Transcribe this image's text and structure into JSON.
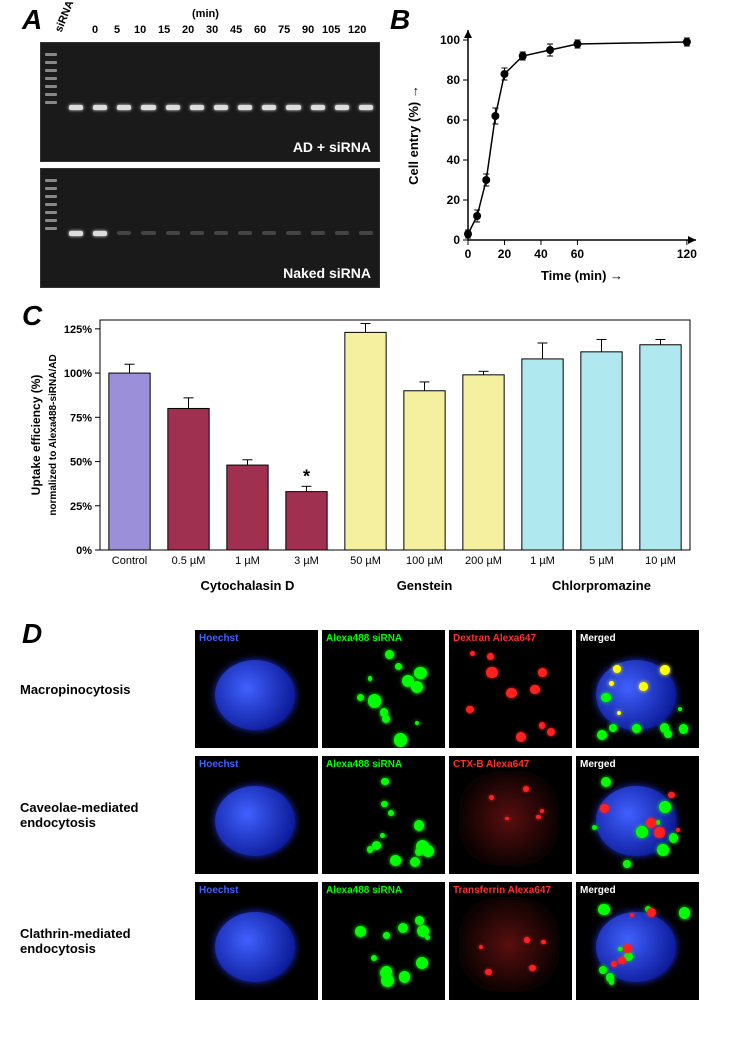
{
  "panelA": {
    "label": "A",
    "time_unit_label": "(min)",
    "column_headers": [
      "siRNA",
      "0",
      "5",
      "10",
      "15",
      "20",
      "30",
      "45",
      "60",
      "75",
      "90",
      "105",
      "120"
    ],
    "header_fontsize": 11,
    "gel1_label": "AD + siRNA",
    "gel2_label": "Naked siRNA",
    "gel_bg": "#1a1a1a",
    "band_color": "#dddddd",
    "overlay_text_color": "#ffffff",
    "overlay_fontsize": 14
  },
  "panelB": {
    "label": "B",
    "type": "line-scatter",
    "x_label": "Time (min)",
    "y_label": "Cell entry (%)",
    "x_arrow": true,
    "y_arrow": true,
    "x_lim": [
      0,
      125
    ],
    "y_lim": [
      0,
      105
    ],
    "x_ticks": [
      0,
      20,
      40,
      60,
      120
    ],
    "y_ticks": [
      0,
      20,
      40,
      60,
      80,
      100
    ],
    "points": [
      {
        "x": 0,
        "y": 3,
        "err": 2
      },
      {
        "x": 5,
        "y": 12,
        "err": 3
      },
      {
        "x": 10,
        "y": 30,
        "err": 3
      },
      {
        "x": 15,
        "y": 62,
        "err": 4
      },
      {
        "x": 20,
        "y": 83,
        "err": 3
      },
      {
        "x": 30,
        "y": 92,
        "err": 2
      },
      {
        "x": 45,
        "y": 95,
        "err": 3
      },
      {
        "x": 60,
        "y": 98,
        "err": 2
      },
      {
        "x": 120,
        "y": 99,
        "err": 2
      }
    ],
    "marker_color": "#000000",
    "line_color": "#000000",
    "line_width": 1.5,
    "marker_size": 4,
    "axis_fontsize": 13,
    "tick_fontsize": 12,
    "background_color": "#ffffff"
  },
  "panelC": {
    "label": "C",
    "type": "bar",
    "y_label_line1": "Uptake efficiency (%)",
    "y_label_line2": "normalized to Alexa488-siRNA/AD",
    "y_ticks": [
      0,
      25,
      50,
      75,
      100,
      125
    ],
    "y_tick_labels": [
      "0%",
      "25%",
      "50%",
      "75%",
      "100%",
      "125%"
    ],
    "y_lim": [
      0,
      130
    ],
    "groups": [
      {
        "name": "Control",
        "bars": [
          {
            "label": "Control",
            "value": 100,
            "err": 5,
            "color": "#9a8fd8"
          }
        ]
      },
      {
        "name": "Cytochalasin D",
        "bars": [
          {
            "label": "0.5 µM",
            "value": 80,
            "err": 6,
            "color": "#a03050"
          },
          {
            "label": "1 µM",
            "value": 48,
            "err": 3,
            "color": "#a03050"
          },
          {
            "label": "3 µM",
            "value": 33,
            "err": 3,
            "color": "#a03050",
            "star": true
          }
        ]
      },
      {
        "name": "Genstein",
        "bars": [
          {
            "label": "50 µM",
            "value": 123,
            "err": 5,
            "color": "#f5f0a0"
          },
          {
            "label": "100 µM",
            "value": 90,
            "err": 5,
            "color": "#f5f0a0"
          },
          {
            "label": "200 µM",
            "value": 99,
            "err": 2,
            "color": "#f5f0a0"
          }
        ]
      },
      {
        "name": "Chlorpromazine",
        "bars": [
          {
            "label": "1 µM",
            "value": 108,
            "err": 9,
            "color": "#b0e8f0"
          },
          {
            "label": "5 µM",
            "value": 112,
            "err": 7,
            "color": "#b0e8f0"
          },
          {
            "label": "10 µM",
            "value": 116,
            "err": 3,
            "color": "#b0e8f0"
          }
        ]
      }
    ],
    "bar_border": "#000000",
    "axis_color": "#000000",
    "grid": false,
    "tick_fontsize": 11,
    "axis_label_fontsize": 12,
    "group_label_fontsize": 13,
    "star_symbol": "*",
    "background_color": "#ffffff"
  },
  "panelD": {
    "label": "D",
    "rows": [
      {
        "row_label": "Macropinocytosis",
        "cells": [
          {
            "label": "Hoechst",
            "label_color": "#4060ff"
          },
          {
            "label": "Alexa488 siRNA",
            "label_color": "#00ff00"
          },
          {
            "label": "Dextran Alexa647",
            "label_color": "#ff3030"
          },
          {
            "label": "Merged",
            "label_color": "#ffffff"
          }
        ]
      },
      {
        "row_label": "Caveolae-mediated endocytosis",
        "cells": [
          {
            "label": "Hoechst",
            "label_color": "#4060ff"
          },
          {
            "label": "Alexa488 siRNA",
            "label_color": "#00ff00"
          },
          {
            "label": "CTX-B Alexa647",
            "label_color": "#ff3030"
          },
          {
            "label": "Merged",
            "label_color": "#ffffff"
          }
        ]
      },
      {
        "row_label": "Clathrin-mediated endocytosis",
        "cells": [
          {
            "label": "Hoechst",
            "label_color": "#4060ff"
          },
          {
            "label": "Alexa488 siRNA",
            "label_color": "#00ff00"
          },
          {
            "label": "Transferrin Alexa647",
            "label_color": "#ff3030"
          },
          {
            "label": "Merged",
            "label_color": "#ffffff"
          }
        ]
      }
    ],
    "cell_bg": "#000000",
    "row_label_fontsize": 13,
    "cell_label_fontsize": 10
  }
}
